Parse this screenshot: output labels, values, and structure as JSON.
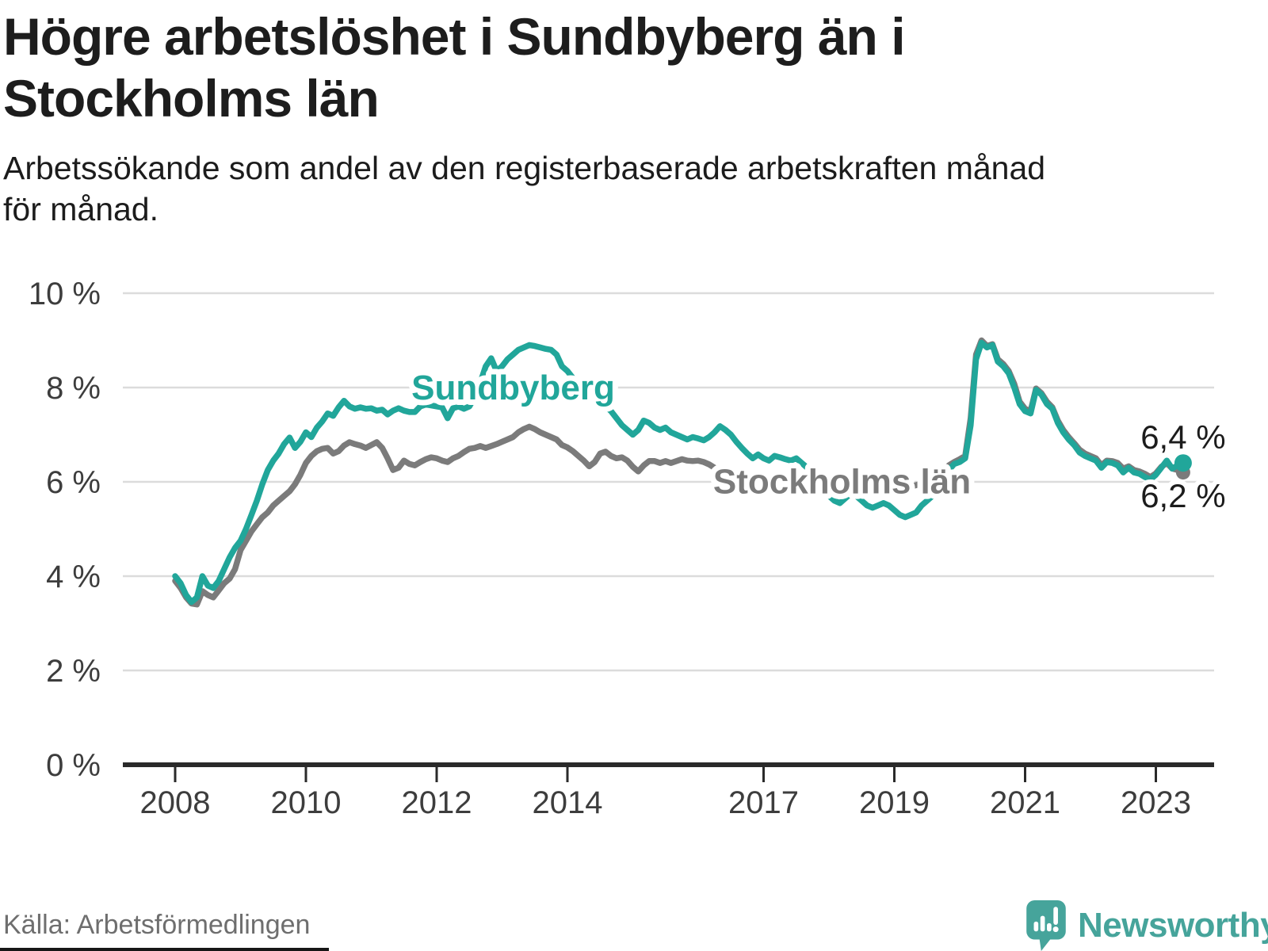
{
  "title": "Högre arbetslöshet i Sundbyberg än i Stockholms län",
  "subtitle": "Arbetssökande som andel av den registerbaserade arbetskraften månad för månad.",
  "source": "Källa: Arbetsförmedlingen",
  "brand": {
    "name": "Newsworthy",
    "color": "#46a49b"
  },
  "chart_data": {
    "type": "line",
    "title": "Högre arbetslöshet i Sundbyberg än i Stockholms län",
    "x_start_year": 2008,
    "x_frequency": "monthly",
    "x_end": "2023-06",
    "ylim": [
      0,
      10
    ],
    "grid": "horizontal",
    "legend_position": "inline-labels",
    "style": {
      "background": "#ffffff",
      "grid_color": "#dcdcdc",
      "axis_color": "#2a2a2a",
      "tick_text_color": "#3d3d3d"
    },
    "y_ticks": [
      {
        "label": "10 %",
        "value": 10
      },
      {
        "label": "8 %",
        "value": 8
      },
      {
        "label": "6 %",
        "value": 6
      },
      {
        "label": "4 %",
        "value": 4
      },
      {
        "label": "2 %",
        "value": 2
      },
      {
        "label": "0 %",
        "value": 0
      }
    ],
    "x_ticks": [
      {
        "label": "2008",
        "year": 2008
      },
      {
        "label": "2010",
        "year": 2010
      },
      {
        "label": "2012",
        "year": 2012
      },
      {
        "label": "2014",
        "year": 2014
      },
      {
        "label": "2017",
        "year": 2017
      },
      {
        "label": "2019",
        "year": 2019
      },
      {
        "label": "2021",
        "year": 2021
      },
      {
        "label": "2023",
        "year": 2023
      }
    ],
    "series": [
      {
        "name": "Stockholms län",
        "color": "#7b7b7b",
        "line_width": 7.5,
        "dot_radius": 9,
        "end_label": "6,2 %",
        "end_value": 6.2,
        "label_pos": {
          "x": 2018.2,
          "y": 5.76
        },
        "values": [
          3.9,
          3.75,
          3.55,
          3.42,
          3.4,
          3.68,
          3.6,
          3.55,
          3.7,
          3.85,
          3.95,
          4.15,
          4.55,
          4.75,
          4.95,
          5.1,
          5.25,
          5.35,
          5.5,
          5.6,
          5.7,
          5.8,
          5.95,
          6.15,
          6.4,
          6.55,
          6.65,
          6.7,
          6.72,
          6.6,
          6.65,
          6.77,
          6.84,
          6.8,
          6.77,
          6.72,
          6.78,
          6.84,
          6.72,
          6.5,
          6.25,
          6.3,
          6.45,
          6.38,
          6.35,
          6.42,
          6.48,
          6.52,
          6.5,
          6.45,
          6.42,
          6.5,
          6.55,
          6.63,
          6.7,
          6.72,
          6.76,
          6.72,
          6.76,
          6.8,
          6.85,
          6.9,
          6.95,
          7.05,
          7.12,
          7.17,
          7.12,
          7.05,
          7.0,
          6.95,
          6.9,
          6.78,
          6.73,
          6.65,
          6.55,
          6.45,
          6.33,
          6.42,
          6.6,
          6.64,
          6.55,
          6.5,
          6.52,
          6.45,
          6.32,
          6.22,
          6.35,
          6.44,
          6.44,
          6.4,
          6.44,
          6.4,
          6.44,
          6.48,
          6.45,
          6.44,
          6.45,
          6.42,
          6.37,
          6.3,
          6.2,
          6.12,
          6.08,
          6.05,
          6.02,
          6.0,
          5.97,
          5.95,
          5.95,
          5.94,
          5.92,
          5.91,
          5.9,
          5.9,
          5.89,
          5.88,
          5.87,
          5.86,
          5.86,
          5.85,
          5.85,
          5.86,
          5.87,
          5.89,
          5.9,
          5.91,
          5.9,
          5.89,
          5.88,
          5.9,
          5.93,
          5.96,
          5.93,
          5.9,
          5.88,
          5.9,
          5.93,
          5.97,
          6.02,
          6.08,
          6.15,
          6.25,
          6.35,
          6.42,
          6.48,
          6.55,
          7.35,
          8.7,
          9.0,
          8.88,
          8.92,
          8.6,
          8.5,
          8.35,
          8.08,
          7.7,
          7.55,
          7.5,
          7.98,
          7.88,
          7.7,
          7.58,
          7.3,
          7.1,
          6.95,
          6.82,
          6.68,
          6.6,
          6.55,
          6.5,
          6.35,
          6.45,
          6.44,
          6.4,
          6.28,
          6.33,
          6.25,
          6.22,
          6.17,
          6.1,
          6.18,
          6.32,
          6.4,
          6.28,
          6.25,
          6.2
        ]
      },
      {
        "name": "Sundbyberg",
        "color": "#21a69a",
        "line_width": 7.5,
        "dot_radius": 11,
        "end_label": "6,4 %",
        "end_value": 6.4,
        "label_pos": {
          "x": 2013.17,
          "y": 7.75
        },
        "values": [
          4.0,
          3.85,
          3.6,
          3.45,
          3.55,
          4.0,
          3.8,
          3.75,
          3.9,
          4.15,
          4.4,
          4.6,
          4.75,
          5.0,
          5.3,
          5.6,
          5.95,
          6.25,
          6.45,
          6.6,
          6.8,
          6.94,
          6.72,
          6.85,
          7.05,
          6.95,
          7.15,
          7.28,
          7.45,
          7.4,
          7.58,
          7.72,
          7.6,
          7.55,
          7.58,
          7.55,
          7.56,
          7.51,
          7.53,
          7.43,
          7.51,
          7.56,
          7.51,
          7.48,
          7.48,
          7.6,
          7.64,
          7.62,
          7.6,
          7.58,
          7.35,
          7.56,
          7.6,
          7.55,
          7.6,
          7.8,
          8.1,
          8.45,
          8.62,
          8.35,
          8.45,
          8.6,
          8.7,
          8.8,
          8.85,
          8.9,
          8.88,
          8.85,
          8.82,
          8.8,
          8.7,
          8.45,
          8.35,
          8.2,
          8.0,
          8.05,
          7.85,
          7.9,
          7.7,
          7.6,
          7.5,
          7.35,
          7.2,
          7.1,
          7.0,
          7.1,
          7.3,
          7.25,
          7.15,
          7.1,
          7.15,
          7.05,
          7.0,
          6.95,
          6.9,
          6.95,
          6.92,
          6.88,
          6.95,
          7.05,
          7.18,
          7.1,
          7.0,
          6.85,
          6.72,
          6.6,
          6.5,
          6.58,
          6.5,
          6.45,
          6.55,
          6.52,
          6.48,
          6.45,
          6.5,
          6.4,
          6.3,
          6.15,
          6.0,
          5.85,
          5.7,
          5.6,
          5.55,
          5.65,
          5.75,
          5.7,
          5.6,
          5.5,
          5.45,
          5.5,
          5.55,
          5.5,
          5.4,
          5.3,
          5.25,
          5.3,
          5.35,
          5.5,
          5.6,
          5.7,
          5.9,
          6.1,
          6.25,
          6.38,
          6.42,
          6.5,
          7.2,
          8.6,
          8.95,
          8.85,
          8.9,
          8.55,
          8.45,
          8.3,
          8.0,
          7.65,
          7.5,
          7.45,
          7.95,
          7.85,
          7.65,
          7.55,
          7.25,
          7.05,
          6.9,
          6.78,
          6.62,
          6.55,
          6.5,
          6.45,
          6.3,
          6.42,
          6.4,
          6.35,
          6.2,
          6.3,
          6.2,
          6.17,
          6.1,
          6.05,
          6.15,
          6.3,
          6.45,
          6.28,
          6.35,
          6.4
        ]
      }
    ]
  }
}
